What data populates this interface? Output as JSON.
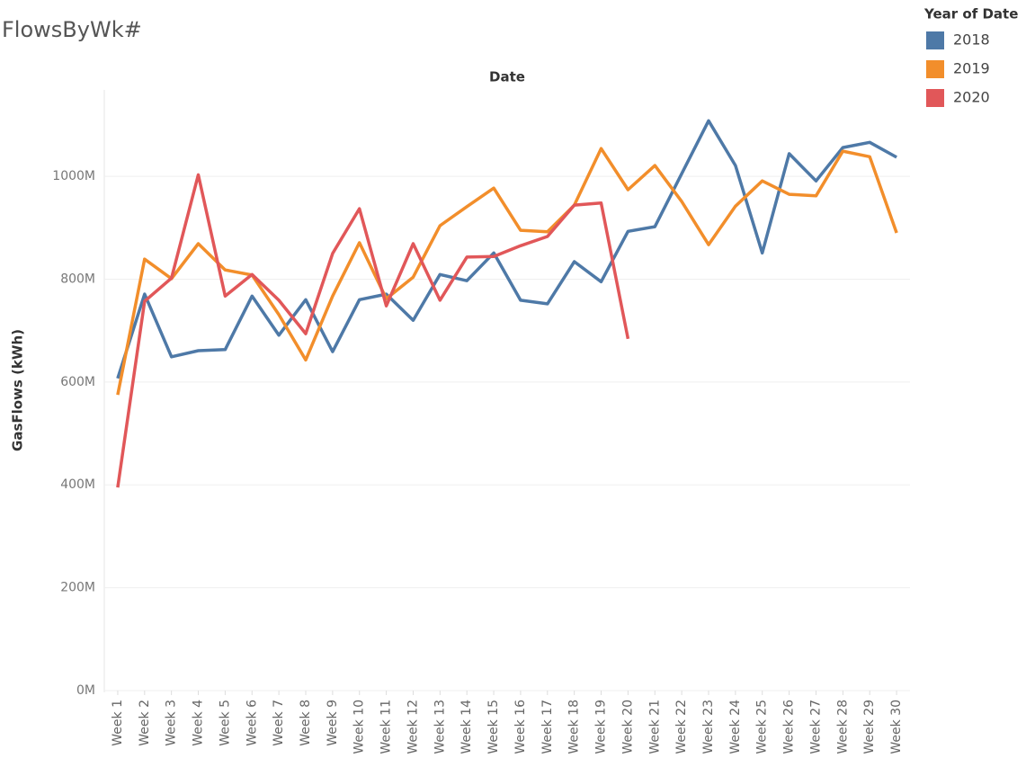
{
  "chart_data": {
    "type": "line",
    "title": "FlowsByWk#",
    "x_axis_title": "Date",
    "y_axis_title": "GasFlows (kWh)",
    "legend_title": "Year of Date",
    "legend_position": "top-right",
    "grid": true,
    "categories": [
      "Week 1",
      "Week 2",
      "Week 3",
      "Week 4",
      "Week 5",
      "Week 6",
      "Week 7",
      "Week 8",
      "Week 9",
      "Week 10",
      "Week 11",
      "Week 12",
      "Week 13",
      "Week 14",
      "Week 15",
      "Week 16",
      "Week 17",
      "Week 18",
      "Week 19",
      "Week 20",
      "Week 21",
      "Week 22",
      "Week 23",
      "Week 24",
      "Week 25",
      "Week 26",
      "Week 27",
      "Week 28",
      "Week 29",
      "Week 30"
    ],
    "ylim": [
      0,
      1168000000
    ],
    "yticks": [
      {
        "value": 0,
        "label": "0M"
      },
      {
        "value": 200000000,
        "label": "200M"
      },
      {
        "value": 400000000,
        "label": "400M"
      },
      {
        "value": 600000000,
        "label": "600M"
      },
      {
        "value": 800000000,
        "label": "800M"
      },
      {
        "value": 1000000000,
        "label": "1000M"
      }
    ],
    "series": [
      {
        "name": "2018",
        "color": "#4e79a7",
        "values": [
          607000000,
          771000000,
          649000000,
          661000000,
          663000000,
          767000000,
          691000000,
          760000000,
          659000000,
          760000000,
          771000000,
          720000000,
          809000000,
          797000000,
          851000000,
          759000000,
          752000000,
          834000000,
          795000000,
          893000000,
          902000000,
          1005000000,
          1108000000,
          1021000000,
          851000000,
          1044000000,
          991000000,
          1056000000,
          1066000000,
          1037000000
        ]
      },
      {
        "name": "2019",
        "color": "#f28e2b",
        "values": [
          575000000,
          839000000,
          801000000,
          869000000,
          818000000,
          808000000,
          731000000,
          643000000,
          767000000,
          871000000,
          762000000,
          804000000,
          904000000,
          941000000,
          977000000,
          895000000,
          892000000,
          944000000,
          1054000000,
          974000000,
          1021000000,
          951000000,
          867000000,
          942000000,
          991000000,
          965000000,
          962000000,
          1049000000,
          1038000000,
          890000000
        ]
      },
      {
        "name": "2020",
        "color": "#e15759",
        "values": [
          395000000,
          757000000,
          802000000,
          1003000000,
          767000000,
          809000000,
          759000000,
          694000000,
          850000000,
          937000000,
          748000000,
          869000000,
          759000000,
          843000000,
          844000000,
          865000000,
          883000000,
          944000000,
          948000000,
          684000000,
          null,
          null,
          null,
          null,
          null,
          null,
          null,
          null,
          null,
          null
        ]
      }
    ]
  }
}
